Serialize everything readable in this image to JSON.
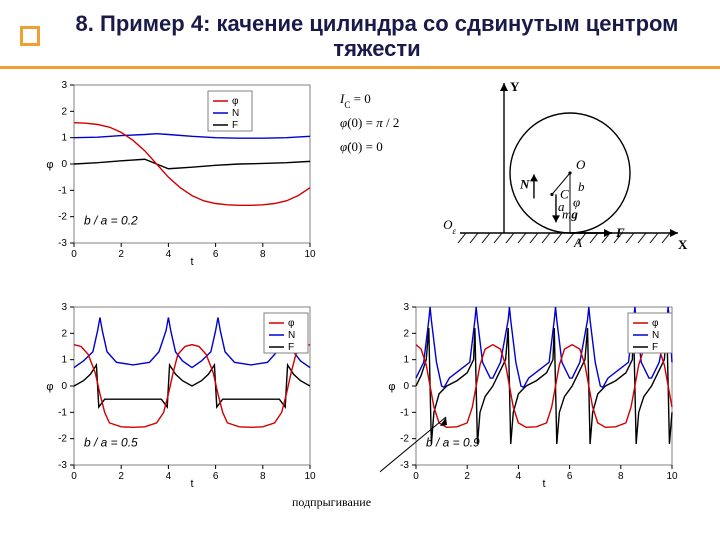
{
  "title": "8. Пример 4: качение цилиндра со сдвинутым центром тяжести",
  "colors": {
    "phi": "#d00000",
    "N": "#0000d0",
    "F": "#000000",
    "axis": "#000000",
    "frame": "#808080",
    "accent": "#f0a030",
    "bg": "#ffffff"
  },
  "legend_labels": [
    "φ",
    "N",
    "F"
  ],
  "diagram": {
    "labels": {
      "Y": "Y",
      "X": "X",
      "O": "O",
      "Oe": "O_ε",
      "C": "C",
      "A": "A",
      "F": "F",
      "N": "N",
      "mg": "mg",
      "b": "b",
      "a": "a",
      "phi": "φ"
    },
    "equations": [
      "I_C = 0",
      "φ(0) = π / 2",
      "φ̇(0) = 0"
    ]
  },
  "charts": {
    "c1": {
      "annot": "b / a = 0.2",
      "xlim": [
        0,
        10
      ],
      "ylim": [
        -3,
        3
      ],
      "xticks": [
        0,
        2,
        4,
        6,
        8,
        10
      ],
      "yticks": [
        -3,
        -2,
        -1,
        0,
        1,
        2,
        3
      ],
      "xlabel": "t",
      "ylabel": "φ",
      "phi_pts": [
        [
          0,
          1.57
        ],
        [
          0.5,
          1.55
        ],
        [
          1,
          1.5
        ],
        [
          1.5,
          1.4
        ],
        [
          2,
          1.2
        ],
        [
          2.5,
          0.9
        ],
        [
          3,
          0.5
        ],
        [
          3.5,
          0.0
        ],
        [
          4,
          -0.5
        ],
        [
          4.5,
          -0.9
        ],
        [
          5,
          -1.2
        ],
        [
          5.5,
          -1.4
        ],
        [
          6,
          -1.5
        ],
        [
          6.5,
          -1.55
        ],
        [
          7,
          -1.57
        ],
        [
          7.5,
          -1.57
        ],
        [
          8,
          -1.55
        ],
        [
          8.5,
          -1.5
        ],
        [
          9,
          -1.4
        ],
        [
          9.5,
          -1.2
        ],
        [
          10,
          -0.9
        ]
      ],
      "N_pts": [
        [
          0,
          1.0
        ],
        [
          1,
          1.02
        ],
        [
          2,
          1.08
        ],
        [
          3,
          1.12
        ],
        [
          3.5,
          1.15
        ],
        [
          4,
          1.12
        ],
        [
          5,
          1.05
        ],
        [
          6,
          1.0
        ],
        [
          7,
          0.98
        ],
        [
          8,
          0.98
        ],
        [
          9,
          1.0
        ],
        [
          10,
          1.05
        ]
      ],
      "F_pts": [
        [
          0,
          0.0
        ],
        [
          1,
          0.05
        ],
        [
          2,
          0.12
        ],
        [
          3,
          0.18
        ],
        [
          3.5,
          0.0
        ],
        [
          4,
          -0.18
        ],
        [
          5,
          -0.12
        ],
        [
          6,
          -0.05
        ],
        [
          7,
          0.0
        ],
        [
          8,
          0.02
        ],
        [
          9,
          0.05
        ],
        [
          10,
          0.1
        ]
      ]
    },
    "c2": {
      "annot": "b / a = 0.5",
      "xlim": [
        0,
        10
      ],
      "ylim": [
        -3,
        3
      ],
      "xticks": [
        0,
        2,
        4,
        6,
        8,
        10
      ],
      "yticks": [
        -3,
        -2,
        -1,
        0,
        1,
        2,
        3
      ],
      "xlabel": "t",
      "ylabel": "φ",
      "phi_pts": [
        [
          0,
          1.57
        ],
        [
          0.3,
          1.5
        ],
        [
          0.6,
          1.2
        ],
        [
          0.9,
          0.5
        ],
        [
          1.1,
          -0.3
        ],
        [
          1.3,
          -1.0
        ],
        [
          1.5,
          -1.4
        ],
        [
          2.0,
          -1.55
        ],
        [
          2.5,
          -1.57
        ],
        [
          3.0,
          -1.55
        ],
        [
          3.5,
          -1.4
        ],
        [
          3.8,
          -1.0
        ],
        [
          4.0,
          -0.3
        ],
        [
          4.2,
          0.5
        ],
        [
          4.4,
          1.2
        ],
        [
          4.7,
          1.5
        ],
        [
          5.0,
          1.57
        ],
        [
          5.3,
          1.5
        ],
        [
          5.6,
          1.2
        ],
        [
          5.9,
          0.5
        ],
        [
          6.1,
          -0.3
        ],
        [
          6.3,
          -1.0
        ],
        [
          6.5,
          -1.4
        ],
        [
          7.0,
          -1.55
        ],
        [
          7.5,
          -1.57
        ],
        [
          8.0,
          -1.55
        ],
        [
          8.5,
          -1.4
        ],
        [
          8.8,
          -1.0
        ],
        [
          9.0,
          -0.3
        ],
        [
          9.2,
          0.5
        ],
        [
          9.4,
          1.2
        ],
        [
          9.7,
          1.5
        ],
        [
          10,
          1.57
        ]
      ],
      "N_pts": [
        [
          0,
          0.7
        ],
        [
          0.4,
          0.95
        ],
        [
          0.8,
          1.3
        ],
        [
          1.0,
          2.1
        ],
        [
          1.1,
          2.6
        ],
        [
          1.2,
          2.1
        ],
        [
          1.4,
          1.3
        ],
        [
          1.8,
          0.9
        ],
        [
          2.5,
          0.8
        ],
        [
          3.2,
          0.9
        ],
        [
          3.6,
          1.3
        ],
        [
          3.9,
          2.1
        ],
        [
          4.0,
          2.6
        ],
        [
          4.1,
          2.1
        ],
        [
          4.3,
          1.3
        ],
        [
          4.6,
          0.95
        ],
        [
          5.0,
          0.7
        ],
        [
          5.4,
          0.95
        ],
        [
          5.8,
          1.3
        ],
        [
          6.0,
          2.1
        ],
        [
          6.1,
          2.6
        ],
        [
          6.2,
          2.1
        ],
        [
          6.4,
          1.3
        ],
        [
          6.8,
          0.9
        ],
        [
          7.5,
          0.8
        ],
        [
          8.2,
          0.9
        ],
        [
          8.6,
          1.3
        ],
        [
          8.9,
          2.1
        ],
        [
          9.0,
          2.6
        ],
        [
          9.1,
          2.1
        ],
        [
          9.3,
          1.3
        ],
        [
          9.6,
          0.95
        ],
        [
          10,
          0.7
        ]
      ],
      "F_pts": [
        [
          0,
          0.0
        ],
        [
          0.4,
          0.2
        ],
        [
          0.7,
          0.45
        ],
        [
          0.95,
          0.8
        ],
        [
          1.0,
          0.0
        ],
        [
          1.05,
          -0.8
        ],
        [
          1.3,
          -0.5
        ],
        [
          1.6,
          -0.5
        ],
        [
          2.0,
          -0.5
        ],
        [
          2.5,
          -0.5
        ],
        [
          3.0,
          -0.5
        ],
        [
          3.4,
          -0.5
        ],
        [
          3.7,
          -0.5
        ],
        [
          3.95,
          -0.8
        ],
        [
          4.0,
          0.0
        ],
        [
          4.05,
          0.8
        ],
        [
          4.3,
          0.45
        ],
        [
          4.6,
          0.2
        ],
        [
          5.0,
          0.0
        ],
        [
          5.4,
          0.2
        ],
        [
          5.7,
          0.45
        ],
        [
          5.95,
          0.8
        ],
        [
          6.0,
          0.0
        ],
        [
          6.05,
          -0.8
        ],
        [
          6.3,
          -0.5
        ],
        [
          7.0,
          -0.5
        ],
        [
          7.5,
          -0.5
        ],
        [
          8.0,
          -0.5
        ],
        [
          8.4,
          -0.5
        ],
        [
          8.7,
          -0.5
        ],
        [
          8.95,
          -0.8
        ],
        [
          9.0,
          0.0
        ],
        [
          9.05,
          0.8
        ],
        [
          9.3,
          0.45
        ],
        [
          9.6,
          0.2
        ],
        [
          10,
          0.0
        ]
      ]
    },
    "c3": {
      "annot": "b / a = 0.9",
      "xlim": [
        0,
        10
      ],
      "ylim": [
        -3,
        3
      ],
      "xticks": [
        0,
        2,
        4,
        6,
        8,
        10
      ],
      "yticks": [
        -3,
        -2,
        -1,
        0,
        1,
        2,
        3
      ],
      "xlabel": "t",
      "ylabel": "φ",
      "arrow_label": "подпрыгивание",
      "phi_pts": [
        [
          0,
          1.57
        ],
        [
          0.2,
          1.4
        ],
        [
          0.4,
          0.8
        ],
        [
          0.55,
          0.0
        ],
        [
          0.7,
          -0.8
        ],
        [
          0.9,
          -1.4
        ],
        [
          1.2,
          -1.57
        ],
        [
          1.6,
          -1.55
        ],
        [
          2.0,
          -1.4
        ],
        [
          2.2,
          -0.8
        ],
        [
          2.35,
          0.0
        ],
        [
          2.5,
          0.8
        ],
        [
          2.7,
          1.4
        ],
        [
          3.0,
          1.57
        ],
        [
          3.3,
          1.4
        ],
        [
          3.5,
          0.8
        ],
        [
          3.65,
          0.0
        ],
        [
          3.8,
          -0.8
        ],
        [
          4.0,
          -1.4
        ],
        [
          4.3,
          -1.57
        ],
        [
          4.7,
          -1.55
        ],
        [
          5.1,
          -1.4
        ],
        [
          5.3,
          -0.8
        ],
        [
          5.45,
          0.0
        ],
        [
          5.6,
          0.8
        ],
        [
          5.8,
          1.4
        ],
        [
          6.1,
          1.57
        ],
        [
          6.4,
          1.4
        ],
        [
          6.6,
          0.8
        ],
        [
          6.75,
          0.0
        ],
        [
          6.9,
          -0.8
        ],
        [
          7.1,
          -1.4
        ],
        [
          7.4,
          -1.57
        ],
        [
          7.8,
          -1.55
        ],
        [
          8.2,
          -1.4
        ],
        [
          8.4,
          -0.8
        ],
        [
          8.55,
          0.0
        ],
        [
          8.7,
          0.8
        ],
        [
          8.9,
          1.4
        ],
        [
          9.2,
          1.57
        ],
        [
          9.5,
          1.4
        ],
        [
          9.7,
          0.8
        ],
        [
          9.85,
          0.0
        ],
        [
          10,
          -0.8
        ]
      ],
      "N_pts": [
        [
          0,
          0.3
        ],
        [
          0.3,
          0.9
        ],
        [
          0.5,
          2.5
        ],
        [
          0.55,
          3.0
        ],
        [
          0.6,
          2.5
        ],
        [
          0.8,
          0.9
        ],
        [
          1.0,
          0.0
        ],
        [
          1.1,
          -0.05
        ],
        [
          1.3,
          0.3
        ],
        [
          1.7,
          0.6
        ],
        [
          2.1,
          0.9
        ],
        [
          2.3,
          2.5
        ],
        [
          2.35,
          3.0
        ],
        [
          2.4,
          2.5
        ],
        [
          2.6,
          0.9
        ],
        [
          2.9,
          0.3
        ],
        [
          3.0,
          0.3
        ],
        [
          3.3,
          0.9
        ],
        [
          3.6,
          2.5
        ],
        [
          3.65,
          3.0
        ],
        [
          3.7,
          2.5
        ],
        [
          3.9,
          0.9
        ],
        [
          4.1,
          0.0
        ],
        [
          4.2,
          -0.05
        ],
        [
          4.4,
          0.3
        ],
        [
          4.8,
          0.6
        ],
        [
          5.2,
          0.9
        ],
        [
          5.4,
          2.5
        ],
        [
          5.45,
          3.0
        ],
        [
          5.5,
          2.5
        ],
        [
          5.7,
          0.9
        ],
        [
          6.0,
          0.3
        ],
        [
          6.1,
          0.3
        ],
        [
          6.4,
          0.9
        ],
        [
          6.7,
          2.5
        ],
        [
          6.75,
          3.0
        ],
        [
          6.8,
          2.5
        ],
        [
          7.0,
          0.9
        ],
        [
          7.2,
          0.0
        ],
        [
          7.3,
          -0.05
        ],
        [
          7.5,
          0.3
        ],
        [
          7.9,
          0.6
        ],
        [
          8.3,
          0.9
        ],
        [
          8.5,
          2.5
        ],
        [
          8.55,
          3.0
        ],
        [
          8.6,
          2.5
        ],
        [
          8.8,
          0.9
        ],
        [
          9.1,
          0.3
        ],
        [
          9.2,
          0.3
        ],
        [
          9.5,
          0.9
        ],
        [
          9.8,
          2.5
        ],
        [
          9.85,
          3.0
        ],
        [
          9.9,
          2.5
        ],
        [
          10,
          0.9
        ]
      ],
      "F_pts": [
        [
          0,
          0.0
        ],
        [
          0.2,
          0.4
        ],
        [
          0.4,
          1.0
        ],
        [
          0.5,
          2.2
        ],
        [
          0.55,
          0.0
        ],
        [
          0.6,
          -2.2
        ],
        [
          0.7,
          -1.0
        ],
        [
          0.9,
          -0.3
        ],
        [
          1.2,
          0.0
        ],
        [
          1.6,
          0.2
        ],
        [
          2.0,
          0.5
        ],
        [
          2.25,
          1.0
        ],
        [
          2.3,
          2.2
        ],
        [
          2.35,
          0.0
        ],
        [
          2.4,
          -2.2
        ],
        [
          2.5,
          -1.0
        ],
        [
          2.7,
          -0.4
        ],
        [
          3.0,
          0.0
        ],
        [
          3.2,
          0.4
        ],
        [
          3.5,
          1.0
        ],
        [
          3.6,
          2.2
        ],
        [
          3.65,
          0.0
        ],
        [
          3.7,
          -2.2
        ],
        [
          3.8,
          -1.0
        ],
        [
          4.0,
          -0.3
        ],
        [
          4.3,
          0.0
        ],
        [
          4.7,
          0.2
        ],
        [
          5.1,
          0.5
        ],
        [
          5.35,
          1.0
        ],
        [
          5.4,
          2.2
        ],
        [
          5.45,
          0.0
        ],
        [
          5.5,
          -2.2
        ],
        [
          5.6,
          -1.0
        ],
        [
          5.8,
          -0.4
        ],
        [
          6.1,
          0.0
        ],
        [
          6.3,
          0.4
        ],
        [
          6.6,
          1.0
        ],
        [
          6.7,
          2.2
        ],
        [
          6.75,
          0.0
        ],
        [
          6.8,
          -2.2
        ],
        [
          6.9,
          -1.0
        ],
        [
          7.1,
          -0.3
        ],
        [
          7.4,
          0.0
        ],
        [
          7.8,
          0.2
        ],
        [
          8.2,
          0.5
        ],
        [
          8.45,
          1.0
        ],
        [
          8.5,
          2.2
        ],
        [
          8.55,
          0.0
        ],
        [
          8.6,
          -2.2
        ],
        [
          8.7,
          -1.0
        ],
        [
          8.9,
          -0.4
        ],
        [
          9.2,
          0.0
        ],
        [
          9.4,
          0.4
        ],
        [
          9.7,
          1.0
        ],
        [
          9.8,
          2.2
        ],
        [
          9.85,
          0.0
        ],
        [
          9.9,
          -2.2
        ],
        [
          10,
          -1.0
        ]
      ]
    }
  }
}
